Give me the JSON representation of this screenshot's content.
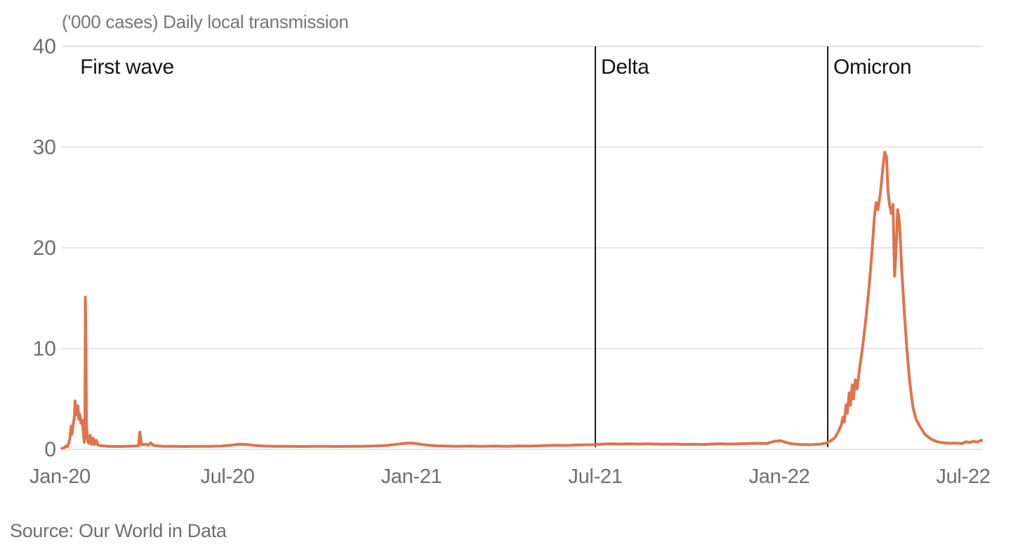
{
  "title": "('000 cases) Daily local transmission",
  "source": "Source:  Our World in Data",
  "colors": {
    "line": "#DF734B",
    "grid": "#e4e4e4",
    "axis_text": "#6e6e6e",
    "title_text": "#767676",
    "annotation_text": "#141414",
    "annotation_line": "#1a1a1a",
    "background": "#ffffff"
  },
  "chart_data": {
    "type": "line",
    "title": "('000 cases) Daily local transmission",
    "ylabel": "'000 cases",
    "xlabel": "",
    "ylim": [
      0,
      40
    ],
    "yticks": [
      0,
      10,
      20,
      30,
      40
    ],
    "grid": "horizontal",
    "legend_position": "none",
    "xticks": [
      {
        "label": "Jan-20",
        "month": 0
      },
      {
        "label": "Jul-20",
        "month": 6
      },
      {
        "label": "Jan-21",
        "month": 12
      },
      {
        "label": "Jul-21",
        "month": 18
      },
      {
        "label": "Jan-22",
        "month": 24
      },
      {
        "label": "Jul-22",
        "month": 30
      }
    ],
    "annotations": [
      {
        "label": "First wave",
        "month": 0.6,
        "line": false
      },
      {
        "label": "Delta",
        "month": 18.0,
        "line": true
      },
      {
        "label": "Omicron",
        "month": 25.58,
        "line": true
      }
    ],
    "series": [
      {
        "name": "Daily local transmission ('000 cases)",
        "x_unit": "months since Jan-2020",
        "y_unit": "thousand cases",
        "points": [
          [
            0.6,
            0.1
          ],
          [
            0.68,
            0.15
          ],
          [
            0.74,
            0.35
          ],
          [
            0.78,
            0.25
          ],
          [
            0.82,
            0.6
          ],
          [
            0.86,
            1.1
          ],
          [
            0.9,
            2.3
          ],
          [
            0.93,
            1.5
          ],
          [
            0.97,
            2.6
          ],
          [
            1.0,
            3.0
          ],
          [
            1.03,
            4.8
          ],
          [
            1.06,
            3.9
          ],
          [
            1.09,
            3.4
          ],
          [
            1.12,
            4.3
          ],
          [
            1.15,
            3.0
          ],
          [
            1.18,
            3.5
          ],
          [
            1.22,
            2.6
          ],
          [
            1.26,
            2.9
          ],
          [
            1.3,
            1.6
          ],
          [
            1.33,
            0.7
          ],
          [
            1.35,
            2.2
          ],
          [
            1.365,
            15.1
          ],
          [
            1.385,
            10.0
          ],
          [
            1.4,
            2.5
          ],
          [
            1.43,
            1.0
          ],
          [
            1.47,
            0.6
          ],
          [
            1.52,
            1.4
          ],
          [
            1.56,
            0.5
          ],
          [
            1.62,
            1.1
          ],
          [
            1.66,
            0.45
          ],
          [
            1.72,
            0.9
          ],
          [
            1.78,
            0.4
          ],
          [
            1.9,
            0.35
          ],
          [
            2.1,
            0.3
          ],
          [
            2.4,
            0.28
          ],
          [
            2.7,
            0.3
          ],
          [
            2.95,
            0.32
          ],
          [
            3.1,
            0.35
          ],
          [
            3.14,
            1.7
          ],
          [
            3.2,
            0.45
          ],
          [
            3.35,
            0.5
          ],
          [
            3.42,
            0.4
          ],
          [
            3.5,
            0.65
          ],
          [
            3.58,
            0.4
          ],
          [
            3.7,
            0.35
          ],
          [
            3.9,
            0.3
          ],
          [
            4.2,
            0.3
          ],
          [
            4.6,
            0.28
          ],
          [
            5.0,
            0.3
          ],
          [
            5.4,
            0.3
          ],
          [
            5.8,
            0.32
          ],
          [
            6.1,
            0.4
          ],
          [
            6.35,
            0.5
          ],
          [
            6.6,
            0.48
          ],
          [
            6.9,
            0.38
          ],
          [
            7.2,
            0.32
          ],
          [
            7.6,
            0.3
          ],
          [
            8.0,
            0.3
          ],
          [
            8.4,
            0.28
          ],
          [
            8.8,
            0.3
          ],
          [
            9.2,
            0.3
          ],
          [
            9.6,
            0.28
          ],
          [
            10.0,
            0.3
          ],
          [
            10.4,
            0.3
          ],
          [
            10.8,
            0.33
          ],
          [
            11.2,
            0.38
          ],
          [
            11.55,
            0.5
          ],
          [
            11.8,
            0.6
          ],
          [
            12.05,
            0.62
          ],
          [
            12.3,
            0.5
          ],
          [
            12.55,
            0.4
          ],
          [
            12.8,
            0.35
          ],
          [
            13.1,
            0.32
          ],
          [
            13.5,
            0.3
          ],
          [
            13.9,
            0.32
          ],
          [
            14.3,
            0.3
          ],
          [
            14.7,
            0.32
          ],
          [
            15.1,
            0.3
          ],
          [
            15.5,
            0.33
          ],
          [
            15.9,
            0.32
          ],
          [
            16.3,
            0.36
          ],
          [
            16.7,
            0.4
          ],
          [
            17.0,
            0.38
          ],
          [
            17.3,
            0.42
          ],
          [
            17.6,
            0.44
          ],
          [
            17.9,
            0.46
          ],
          [
            18.2,
            0.5
          ],
          [
            18.5,
            0.55
          ],
          [
            18.8,
            0.52
          ],
          [
            19.1,
            0.55
          ],
          [
            19.4,
            0.52
          ],
          [
            19.7,
            0.55
          ],
          [
            20.0,
            0.52
          ],
          [
            20.3,
            0.5
          ],
          [
            20.6,
            0.52
          ],
          [
            20.9,
            0.48
          ],
          [
            21.2,
            0.5
          ],
          [
            21.5,
            0.48
          ],
          [
            21.8,
            0.52
          ],
          [
            22.1,
            0.55
          ],
          [
            22.4,
            0.52
          ],
          [
            22.7,
            0.55
          ],
          [
            23.0,
            0.58
          ],
          [
            23.3,
            0.6
          ],
          [
            23.6,
            0.58
          ],
          [
            23.85,
            0.8
          ],
          [
            24.05,
            0.85
          ],
          [
            24.2,
            0.7
          ],
          [
            24.4,
            0.55
          ],
          [
            24.7,
            0.48
          ],
          [
            25.0,
            0.45
          ],
          [
            25.3,
            0.5
          ],
          [
            25.5,
            0.6
          ],
          [
            25.65,
            0.8
          ],
          [
            25.8,
            1.1
          ],
          [
            25.92,
            1.7
          ],
          [
            26.02,
            2.4
          ],
          [
            26.08,
            3.2
          ],
          [
            26.12,
            2.7
          ],
          [
            26.18,
            4.4
          ],
          [
            26.22,
            3.6
          ],
          [
            26.28,
            5.6
          ],
          [
            26.32,
            4.4
          ],
          [
            26.38,
            6.4
          ],
          [
            26.42,
            5.0
          ],
          [
            26.48,
            6.9
          ],
          [
            26.54,
            6.0
          ],
          [
            26.62,
            8.0
          ],
          [
            26.72,
            10.2
          ],
          [
            26.82,
            12.8
          ],
          [
            26.92,
            15.8
          ],
          [
            27.02,
            19.5
          ],
          [
            27.1,
            23.0
          ],
          [
            27.16,
            24.5
          ],
          [
            27.22,
            23.8
          ],
          [
            27.3,
            25.5
          ],
          [
            27.38,
            28.0
          ],
          [
            27.44,
            29.5
          ],
          [
            27.5,
            29.0
          ],
          [
            27.55,
            25.5
          ],
          [
            27.6,
            24.2
          ],
          [
            27.66,
            23.4
          ],
          [
            27.71,
            24.3
          ],
          [
            27.76,
            17.2
          ],
          [
            27.81,
            19.8
          ],
          [
            27.86,
            23.8
          ],
          [
            27.92,
            22.5
          ],
          [
            28.0,
            17.5
          ],
          [
            28.08,
            13.5
          ],
          [
            28.16,
            10.0
          ],
          [
            28.26,
            6.5
          ],
          [
            28.36,
            4.2
          ],
          [
            28.46,
            3.0
          ],
          [
            28.6,
            2.2
          ],
          [
            28.75,
            1.5
          ],
          [
            28.95,
            1.0
          ],
          [
            29.15,
            0.75
          ],
          [
            29.35,
            0.65
          ],
          [
            29.55,
            0.6
          ],
          [
            29.75,
            0.62
          ],
          [
            29.95,
            0.58
          ],
          [
            30.1,
            0.75
          ],
          [
            30.22,
            0.68
          ],
          [
            30.32,
            0.8
          ],
          [
            30.45,
            0.72
          ],
          [
            30.55,
            0.85
          ],
          [
            30.6,
            0.9
          ]
        ]
      }
    ]
  }
}
